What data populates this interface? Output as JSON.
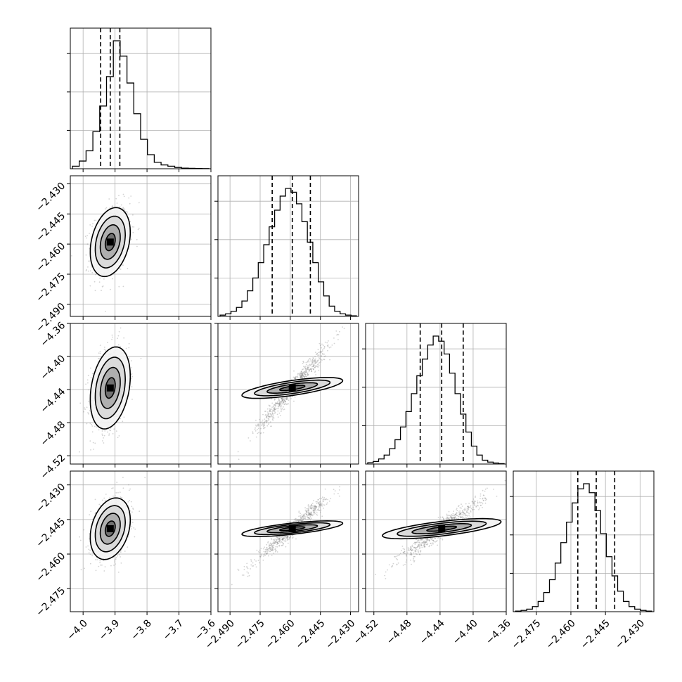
{
  "chart_data": {
    "type": "corner",
    "grid": true,
    "parameters": [
      {
        "ticks": [
          -4.0,
          -3.9,
          -3.8,
          -3.7,
          -3.6
        ],
        "tick_labels": [
          "−4.0",
          "−3.9",
          "−3.8",
          "−3.7",
          "−3.6"
        ],
        "range": [
          -4.04,
          -3.6
        ],
        "mean": -3.915,
        "sd": 0.03,
        "quantiles": [
          -3.945,
          -3.915,
          -3.885
        ]
      },
      {
        "ticks": [
          -2.49,
          -2.475,
          -2.46,
          -2.445,
          -2.43
        ],
        "tick_labels": [
          "−2.490",
          "−2.475",
          "−2.460",
          "−2.445",
          "−2.430"
        ],
        "range": [
          -2.496,
          -2.426
        ],
        "mean": -2.459,
        "sd": 0.009,
        "quantiles": [
          -2.469,
          -2.459,
          -2.45
        ]
      },
      {
        "ticks": [
          -4.52,
          -4.48,
          -4.44,
          -4.4,
          -4.36
        ],
        "tick_labels": [
          "−4.52",
          "−4.48",
          "−4.44",
          "−4.40",
          "−4.36"
        ],
        "range": [
          -4.53,
          -4.36
        ],
        "mean": -4.438,
        "sd": 0.026,
        "quantiles": [
          -4.464,
          -4.438,
          -4.412
        ]
      },
      {
        "ticks": [
          -2.475,
          -2.46,
          -2.445,
          -2.43
        ],
        "tick_labels": [
          "−2.475",
          "−2.460",
          "−2.445",
          "−2.430"
        ],
        "range": [
          -2.485,
          -2.424
        ],
        "mean": -2.449,
        "sd": 0.007,
        "quantiles": [
          -2.457,
          -2.449,
          -2.441
        ]
      }
    ],
    "correlations": [
      [
        1,
        0.3,
        0.3,
        0.3
      ],
      [
        0.3,
        1,
        0.97,
        0.97
      ],
      [
        0.3,
        0.97,
        1,
        0.95
      ],
      [
        0.3,
        0.97,
        0.95,
        1
      ]
    ],
    "histograms": [
      [
        0.02,
        0.06,
        0.14,
        0.29,
        0.49,
        0.72,
        1.0,
        0.88,
        0.67,
        0.43,
        0.23,
        0.11,
        0.05,
        0.03,
        0.02,
        0.01,
        0.005,
        0.003,
        0.002,
        0.001
      ],
      [
        0.01,
        0.02,
        0.04,
        0.07,
        0.12,
        0.2,
        0.3,
        0.42,
        0.56,
        0.7,
        0.83,
        0.94,
        1.0,
        0.97,
        0.88,
        0.74,
        0.58,
        0.42,
        0.27,
        0.16,
        0.08,
        0.04,
        0.02,
        0.01,
        0.005
      ],
      [
        0.01,
        0.02,
        0.04,
        0.07,
        0.12,
        0.19,
        0.29,
        0.41,
        0.55,
        0.69,
        0.82,
        0.93,
        1.0,
        0.96,
        0.86,
        0.71,
        0.55,
        0.39,
        0.25,
        0.14,
        0.07,
        0.03,
        0.015,
        0.008,
        0.003
      ],
      [
        0.005,
        0.01,
        0.02,
        0.04,
        0.08,
        0.15,
        0.25,
        0.38,
        0.54,
        0.7,
        0.85,
        0.96,
        1.0,
        0.93,
        0.79,
        0.61,
        0.43,
        0.28,
        0.16,
        0.08,
        0.04,
        0.02,
        0.01,
        0.005
      ]
    ],
    "contour_levels_sigma": [
      0.5,
      1.0,
      1.5,
      2.0
    ]
  }
}
